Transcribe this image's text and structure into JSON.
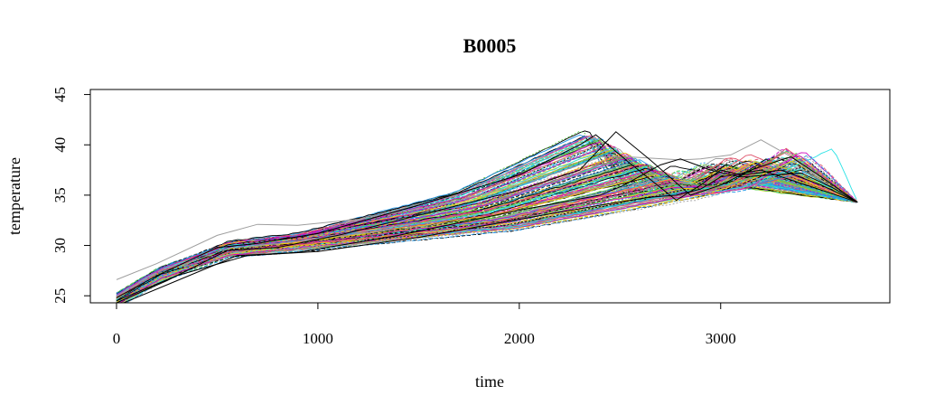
{
  "chart_data": {
    "type": "line",
    "title": "B0005",
    "xlabel": "time",
    "ylabel": "temperature",
    "xlim": [
      -130,
      3840
    ],
    "ylim": [
      24.3,
      45.5
    ],
    "xticks": [
      0,
      1000,
      2000,
      3000
    ],
    "yticks": [
      25,
      30,
      35,
      40,
      45
    ],
    "grid": false,
    "legend": "none",
    "palette": [
      "#000000",
      "#DF536B",
      "#61D04F",
      "#2297E6",
      "#28E2E5",
      "#CD0BBC",
      "#F5C710",
      "#9E9E9E"
    ],
    "representative_curves": [
      {
        "x": [
          0,
          200,
          500,
          700,
          900,
          1200,
          1600,
          2000,
          2300,
          2400,
          2550,
          2800,
          2900,
          3050,
          3200,
          3350,
          3500,
          3680
        ],
        "y": [
          26.6,
          28.2,
          31.0,
          32.1,
          32.0,
          32.6,
          34.0,
          36.0,
          38.0,
          38.8,
          38.8,
          38.5,
          38.6,
          39.0,
          40.5,
          38.8,
          36.5,
          34.3
        ]
      },
      {
        "x": [
          0,
          200,
          500,
          700,
          1000,
          1500,
          2000,
          2300,
          2380,
          2560,
          2780,
          2900,
          3000,
          3100,
          3300,
          3500,
          3680
        ],
        "y": [
          24.8,
          27.0,
          29.8,
          30.2,
          31.2,
          34.0,
          37.0,
          40.0,
          41.0,
          38.0,
          34.5,
          36.0,
          37.5,
          37.0,
          37.5,
          36.0,
          34.3
        ]
      },
      {
        "x": [
          0,
          250,
          550,
          800,
          1100,
          1500,
          2000,
          2300,
          2480,
          2650,
          2850,
          3000,
          3150,
          3300,
          3350,
          3500,
          3680
        ],
        "y": [
          24.3,
          26.5,
          29.5,
          29.8,
          31.0,
          33.0,
          35.5,
          37.5,
          41.3,
          38.5,
          35.0,
          36.0,
          37.5,
          38.5,
          38.8,
          36.8,
          34.3
        ]
      },
      {
        "x": [
          0,
          300,
          600,
          900,
          1400,
          2000,
          2400,
          2520,
          2700,
          2800,
          2950,
          3100,
          3250,
          3400,
          3550,
          3680
        ],
        "y": [
          24.0,
          26.5,
          29.0,
          29.3,
          31.0,
          33.5,
          35.0,
          36.0,
          38.0,
          38.6,
          37.5,
          36.8,
          37.0,
          37.2,
          35.8,
          34.3
        ]
      },
      {
        "x": [
          0,
          300,
          650,
          1000,
          1500,
          2000,
          2400,
          2650,
          2780,
          2900,
          3000,
          3200,
          3350,
          3500,
          3680
        ],
        "y": [
          24.5,
          27.0,
          29.0,
          29.4,
          30.8,
          32.6,
          34.0,
          34.8,
          35.0,
          35.6,
          36.8,
          37.5,
          36.5,
          35.5,
          34.3
        ]
      }
    ]
  }
}
